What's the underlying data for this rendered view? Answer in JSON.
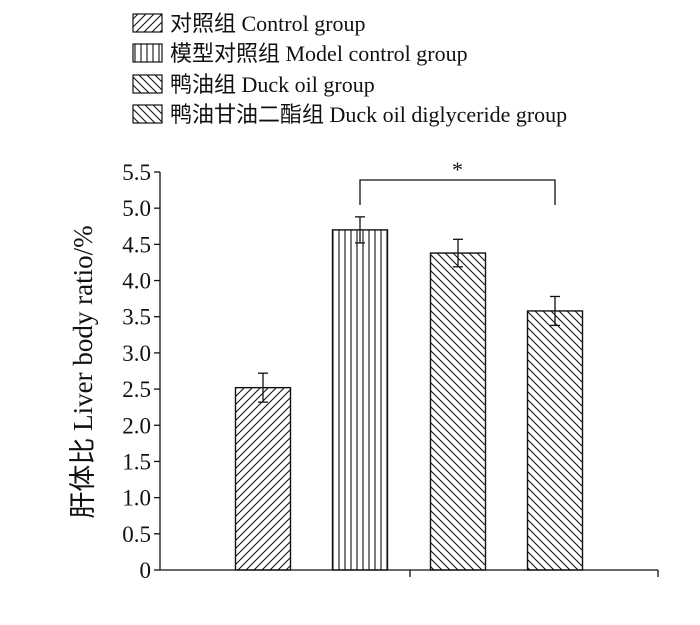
{
  "chart_data": {
    "type": "bar",
    "categories": [
      "对照组 Control group",
      "模型对照组 Model control group",
      "鸭油组 Duck oil group",
      "鸭油甘油二酯组  Duck oil diglyceride group"
    ],
    "values": [
      2.52,
      4.7,
      4.38,
      3.58
    ],
    "errors": [
      0.2,
      0.18,
      0.19,
      0.2
    ],
    "patterns": [
      "diag-forward",
      "vertical",
      "diag-back",
      "diag-back"
    ],
    "ylabel": "肝体比 Liver body ratio/%",
    "ylim": [
      0,
      5.5
    ],
    "yticks": [
      "0",
      "0.5",
      "1.0",
      "1.5",
      "2.0",
      "2.5",
      "3.0",
      "3.5",
      "4.0",
      "4.5",
      "5.0",
      "5.5"
    ],
    "legend_position": "top-left",
    "grid": false,
    "significance": {
      "from": 1,
      "to": 3,
      "label": "*"
    },
    "colors": {
      "stroke": "#111111",
      "fill": "#ffffff"
    }
  }
}
